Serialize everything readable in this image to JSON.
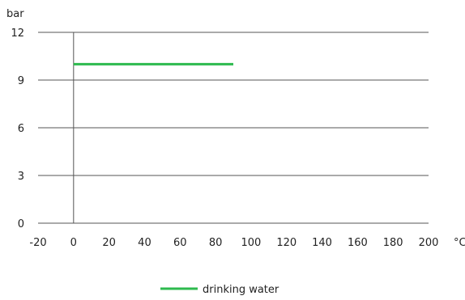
{
  "chart_data": {
    "type": "line",
    "title": "",
    "xlabel": "°C",
    "ylabel": "bar",
    "xlim": [
      -20,
      200
    ],
    "ylim": [
      0,
      12
    ],
    "x_ticks": [
      "-20",
      "0",
      "20",
      "40",
      "60",
      "80",
      "100",
      "120",
      "140",
      "160",
      "180",
      "200"
    ],
    "y_ticks": [
      "0",
      "3",
      "6",
      "9",
      "12"
    ],
    "grid": "horizontal",
    "legend_position": "bottom",
    "series": [
      {
        "name": "drinking water",
        "color": "#2dba4e",
        "x": [
          0,
          90
        ],
        "y": [
          10,
          10
        ]
      }
    ]
  }
}
